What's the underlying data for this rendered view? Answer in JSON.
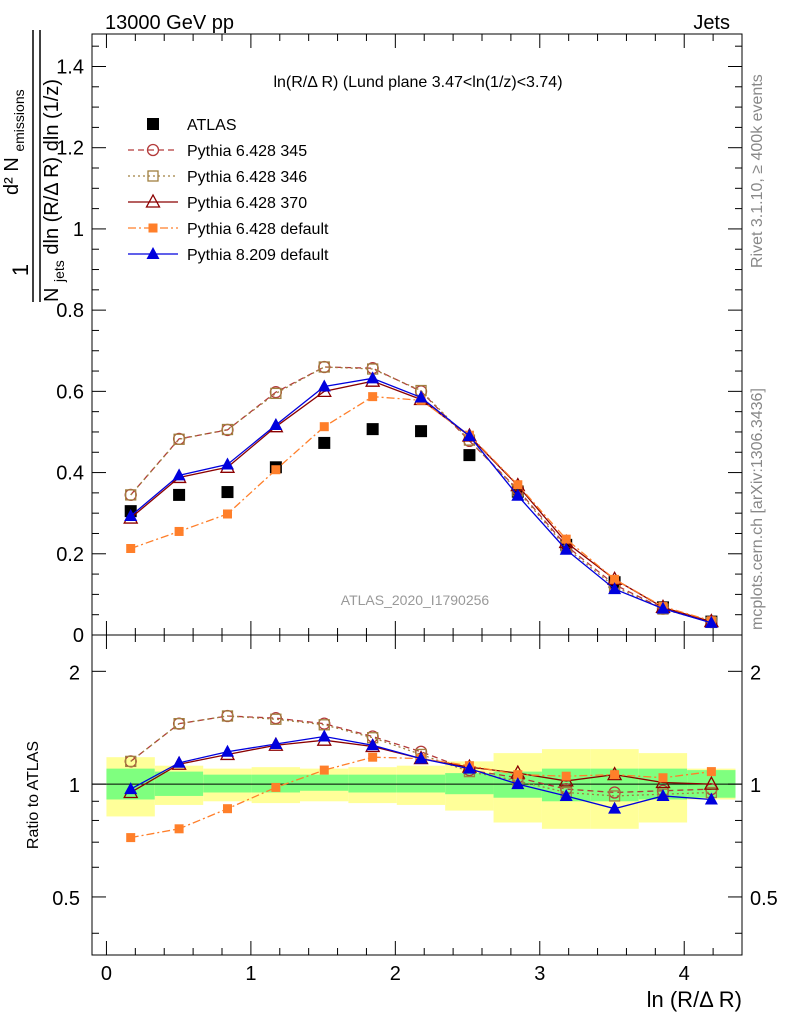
{
  "header": {
    "left": "13000 GeV pp",
    "right": "Jets"
  },
  "plot_title": "ln(R/Δ R) (Lund plane 3.47<ln(1/z)<3.74)",
  "watermark": "ATLAS_2020_I1790256",
  "side_right_top": "Rivet 3.1.10, ≥ 400k events",
  "side_right_bottom": "mcplots.cern.ch [arXiv:1306.3436]",
  "y_label_main": {
    "num": "d² N",
    "num_sub": "emissions",
    "den": "N",
    "den_sub": "jets",
    "den_rest": "dln (R/Δ R) dln (1/z)",
    "one": "1"
  },
  "y_label_ratio": "Ratio to ATLAS",
  "x_label": "ln (R/Δ R)",
  "colors": {
    "atlas": "#000000",
    "p345": "#b33a3a",
    "p346": "#a08040",
    "p370": "#8b0000",
    "p6def": "#ff7f2a",
    "p8def": "#0000dd",
    "band_inner": "#7fff7f",
    "band_outer": "#ffff99"
  },
  "chart_data": [
    {
      "type": "line",
      "panel": "main",
      "xlim": [
        -0.1,
        4.4
      ],
      "ylim": [
        0,
        1.48
      ],
      "x_ticks": [
        "0",
        "1",
        "2",
        "3",
        "4"
      ],
      "y_ticks": [
        "0",
        "0.2",
        "0.4",
        "0.6",
        "0.8",
        "1",
        "1.2",
        "1.4"
      ],
      "x": [
        0.168,
        0.503,
        0.838,
        1.173,
        1.508,
        1.843,
        2.178,
        2.513,
        2.848,
        3.183,
        3.518,
        3.853,
        4.188
      ],
      "series": [
        {
          "name": "ATLAS",
          "marker": "square",
          "values": [
            0.305,
            0.345,
            0.352,
            0.413,
            0.473,
            0.507,
            0.502,
            0.443,
            0.353,
            0.222,
            0.13,
            0.068,
            0.033
          ]
        },
        {
          "name": "Pythia 6.428 345",
          "marker": "open-circle",
          "dash": "dashed",
          "values": [
            0.345,
            0.483,
            0.505,
            0.598,
            0.66,
            0.657,
            0.6,
            0.478,
            0.358,
            0.22,
            0.124,
            0.065,
            0.032
          ]
        },
        {
          "name": "Pythia 6.428 346",
          "marker": "open-square",
          "dash": "dotted",
          "values": [
            0.345,
            0.482,
            0.506,
            0.595,
            0.66,
            0.655,
            0.602,
            0.48,
            0.355,
            0.215,
            0.119,
            0.064,
            0.031
          ]
        },
        {
          "name": "Pythia 6.428 370",
          "marker": "open-triangle",
          "dash": "solid",
          "values": [
            0.288,
            0.388,
            0.413,
            0.513,
            0.6,
            0.625,
            0.58,
            0.49,
            0.368,
            0.228,
            0.137,
            0.068,
            0.033
          ]
        },
        {
          "name": "Pythia 6.428 default",
          "marker": "small-square",
          "dash": "dashdot",
          "values": [
            0.213,
            0.255,
            0.298,
            0.407,
            0.513,
            0.587,
            0.578,
            0.492,
            0.37,
            0.236,
            0.137,
            0.07,
            0.035
          ]
        },
        {
          "name": "Pythia 8.209 default",
          "marker": "filled-triangle",
          "dash": "solid",
          "values": [
            0.293,
            0.393,
            0.42,
            0.517,
            0.612,
            0.632,
            0.585,
            0.49,
            0.343,
            0.21,
            0.113,
            0.065,
            0.03
          ]
        }
      ]
    },
    {
      "type": "line",
      "panel": "ratio",
      "xlim": [
        -0.1,
        4.4
      ],
      "y_scale": "log",
      "ylim": [
        0.35,
        2.5
      ],
      "x_ticks": [
        "0",
        "1",
        "2",
        "3",
        "4"
      ],
      "y_ticks": [
        "0.5",
        "1",
        "2"
      ],
      "x": [
        0.168,
        0.503,
        0.838,
        1.173,
        1.508,
        1.843,
        2.178,
        2.513,
        2.848,
        3.183,
        3.518,
        3.853,
        4.188
      ],
      "bin_edges": [
        0.0,
        0.335,
        0.67,
        1.005,
        1.34,
        1.675,
        2.01,
        2.345,
        2.68,
        3.015,
        3.35,
        3.685,
        4.02,
        4.355
      ],
      "band_inner": [
        [
          0.91,
          1.1
        ],
        [
          0.93,
          1.08
        ],
        [
          0.95,
          1.06
        ],
        [
          0.95,
          1.06
        ],
        [
          0.96,
          1.06
        ],
        [
          0.95,
          1.06
        ],
        [
          0.95,
          1.06
        ],
        [
          0.94,
          1.07
        ],
        [
          0.92,
          1.08
        ],
        [
          0.9,
          1.1
        ],
        [
          0.9,
          1.1
        ],
        [
          0.91,
          1.1
        ],
        [
          0.92,
          1.09
        ]
      ],
      "band_outer": [
        [
          0.82,
          1.18
        ],
        [
          0.88,
          1.12
        ],
        [
          0.9,
          1.1
        ],
        [
          0.89,
          1.11
        ],
        [
          0.9,
          1.1
        ],
        [
          0.89,
          1.11
        ],
        [
          0.88,
          1.12
        ],
        [
          0.85,
          1.15
        ],
        [
          0.79,
          1.21
        ],
        [
          0.76,
          1.24
        ],
        [
          0.76,
          1.24
        ],
        [
          0.79,
          1.21
        ],
        [
          0.91,
          1.1
        ]
      ],
      "series": [
        {
          "name": "Pythia 6.428 345",
          "marker": "open-circle",
          "dash": "dashed",
          "values": [
            1.15,
            1.45,
            1.52,
            1.5,
            1.45,
            1.34,
            1.22,
            1.09,
            1.04,
            0.97,
            0.95,
            0.96,
            0.97
          ]
        },
        {
          "name": "Pythia 6.428 346",
          "marker": "open-square",
          "dash": "dotted",
          "values": [
            1.15,
            1.45,
            1.52,
            1.49,
            1.44,
            1.33,
            1.2,
            1.08,
            1.02,
            0.95,
            0.93,
            0.94,
            0.95
          ]
        },
        {
          "name": "Pythia 6.428 370",
          "marker": "open-triangle",
          "dash": "solid",
          "values": [
            0.95,
            1.13,
            1.2,
            1.27,
            1.31,
            1.26,
            1.17,
            1.11,
            1.07,
            1.02,
            1.06,
            1.01,
            1.0
          ]
        },
        {
          "name": "Pythia 6.428 default",
          "marker": "small-square",
          "dash": "dashdot",
          "values": [
            0.72,
            0.76,
            0.86,
            0.98,
            1.09,
            1.18,
            1.17,
            1.12,
            1.06,
            1.05,
            1.06,
            1.04,
            1.08
          ]
        },
        {
          "name": "Pythia 8.209 default",
          "marker": "filled-triangle",
          "dash": "solid",
          "values": [
            0.97,
            1.14,
            1.22,
            1.28,
            1.34,
            1.27,
            1.17,
            1.1,
            1.0,
            0.93,
            0.86,
            0.93,
            0.91
          ]
        }
      ]
    }
  ]
}
